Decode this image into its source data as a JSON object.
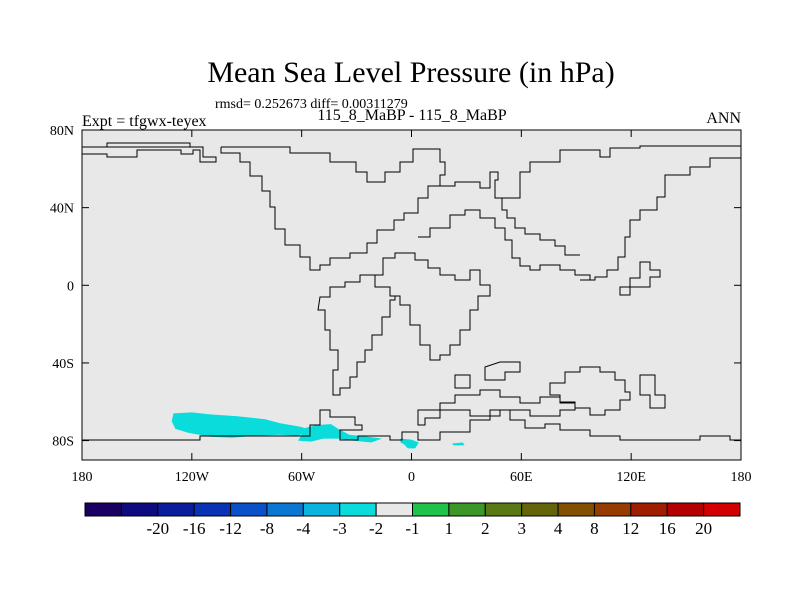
{
  "chart_data": {
    "type": "heatmap",
    "title": "Mean Sea Level Pressure (in hPa)",
    "stats": "rmsd= 0.252673 diff= 0.00311279",
    "experiment": "Expt = tfgwx-teyex",
    "subtitle": "115_8_MaBP - 115_8_MaBP",
    "season": "ANN",
    "xlim": [
      -180,
      180
    ],
    "ylim": [
      -90,
      80
    ],
    "x_ticks": [
      {
        "value": -180,
        "label": "180"
      },
      {
        "value": -120,
        "label": "120W"
      },
      {
        "value": -60,
        "label": "60W"
      },
      {
        "value": 0,
        "label": "0"
      },
      {
        "value": 60,
        "label": "60E"
      },
      {
        "value": 120,
        "label": "120E"
      },
      {
        "value": 180,
        "label": "180"
      }
    ],
    "y_ticks": [
      {
        "value": 80,
        "label": "80N"
      },
      {
        "value": 40,
        "label": "40N"
      },
      {
        "value": 0,
        "label": "0"
      },
      {
        "value": -40,
        "label": "40S"
      },
      {
        "value": -80,
        "label": "80S"
      }
    ],
    "background_color": "#e8e8e8",
    "colorbar": {
      "colors": [
        "#1a0060",
        "#0e0a80",
        "#0a1e9c",
        "#0a32b4",
        "#0a50c8",
        "#0a78d2",
        "#0ab4dc",
        "#0adcdc",
        "#e8e8e8",
        "#1fc34a",
        "#3c9628",
        "#5a7814",
        "#64640a",
        "#825000",
        "#963c00",
        "#a01e00",
        "#b40000",
        "#d20000"
      ],
      "labels": [
        "-20",
        "-16",
        "-12",
        "-8",
        "-4",
        "-3",
        "-2",
        "-1",
        "1",
        "2",
        "3",
        "4",
        "8",
        "12",
        "16",
        "20"
      ]
    },
    "anomaly_regions": [
      {
        "name": "bellingshausen-cyan",
        "value_range": "-2 to -1",
        "color": "#0adcdc",
        "polygon_lonlat": [
          [
            -130,
            -66
          ],
          [
            -120,
            -65.5
          ],
          [
            -110,
            -66.5
          ],
          [
            -95,
            -67.5
          ],
          [
            -80,
            -69
          ],
          [
            -72,
            -71
          ],
          [
            -60,
            -73
          ],
          [
            -55,
            -75
          ],
          [
            -62,
            -77.5
          ],
          [
            -72,
            -77
          ],
          [
            -85,
            -77.5
          ],
          [
            -98,
            -78.5
          ],
          [
            -110,
            -78
          ],
          [
            -122,
            -76
          ],
          [
            -129,
            -74
          ],
          [
            -131,
            -70
          ]
        ]
      },
      {
        "name": "antarctic-peninsula-cyan",
        "value_range": "-2 to -1",
        "color": "#0adcdc",
        "polygon_lonlat": [
          [
            -60,
            -74
          ],
          [
            -52,
            -72
          ],
          [
            -44,
            -71.5
          ],
          [
            -40,
            -74
          ],
          [
            -34,
            -77
          ],
          [
            -24,
            -78
          ],
          [
            -16,
            -79
          ],
          [
            -22,
            -81
          ],
          [
            -32,
            -80
          ],
          [
            -40,
            -79
          ],
          [
            -48,
            -79
          ],
          [
            -55,
            -80.5
          ],
          [
            -62,
            -80
          ],
          [
            -60,
            -77
          ]
        ]
      },
      {
        "name": "weddell-cyan",
        "value_range": "-2 to -1",
        "color": "#0adcdc",
        "polygon_lonlat": [
          [
            -6,
            -79
          ],
          [
            0,
            -79.5
          ],
          [
            4,
            -81
          ],
          [
            2,
            -84
          ],
          [
            -2,
            -84
          ],
          [
            -4,
            -82
          ],
          [
            -6,
            -81
          ]
        ]
      },
      {
        "name": "east-antarctic-cyan",
        "value_range": "-2 to -1",
        "color": "#0adcdc",
        "polygon_lonlat": [
          [
            22,
            -81.5
          ],
          [
            28,
            -81
          ],
          [
            29,
            -82.5
          ],
          [
            23,
            -82.5
          ]
        ]
      }
    ]
  }
}
